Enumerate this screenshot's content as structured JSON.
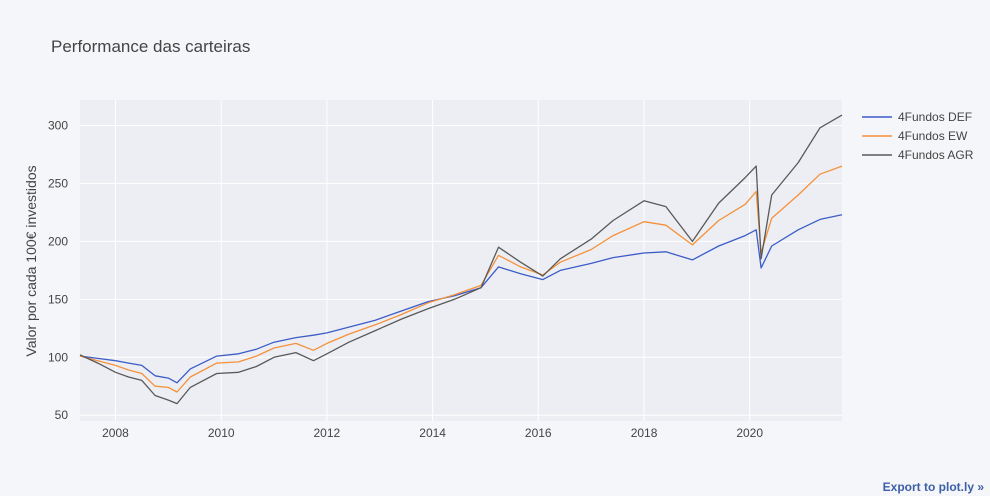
{
  "chart_data": {
    "type": "line",
    "title": "Performance das carteiras",
    "xlabel": "",
    "ylabel": "Valor por cada 100€ investidos",
    "x_ticks": [
      "2008",
      "2010",
      "2012",
      "2014",
      "2016",
      "2018",
      "2020"
    ],
    "y_ticks": [
      50,
      100,
      150,
      200,
      250,
      300
    ],
    "xlim": [
      "2007-05-01",
      "2021-09-30"
    ],
    "ylim": [
      45,
      322
    ],
    "grid": true,
    "legend_position": "top-right",
    "colors": {
      "4Fundos DEF": "#3c5cc8",
      "4Fundos EW": "#f5913a",
      "4Fundos AGR": "#595959"
    },
    "series": [
      {
        "name": "4Fundos DEF",
        "points": [
          [
            "2007-05-01",
            101
          ],
          [
            "2007-09-01",
            99
          ],
          [
            "2008-01-01",
            97
          ],
          [
            "2008-04-01",
            95
          ],
          [
            "2008-07-01",
            93
          ],
          [
            "2008-10-01",
            84
          ],
          [
            "2009-01-01",
            82
          ],
          [
            "2009-03-01",
            78
          ],
          [
            "2009-06-01",
            90
          ],
          [
            "2009-12-01",
            101
          ],
          [
            "2010-05-01",
            103
          ],
          [
            "2010-09-01",
            107
          ],
          [
            "2011-01-01",
            113
          ],
          [
            "2011-06-01",
            117
          ],
          [
            "2011-10-01",
            119
          ],
          [
            "2012-01-01",
            121
          ],
          [
            "2012-06-01",
            126
          ],
          [
            "2012-12-01",
            132
          ],
          [
            "2013-06-01",
            140
          ],
          [
            "2013-12-01",
            148
          ],
          [
            "2014-06-01",
            153
          ],
          [
            "2014-12-01",
            160
          ],
          [
            "2015-04-01",
            178
          ],
          [
            "2015-09-01",
            172
          ],
          [
            "2016-02-01",
            167
          ],
          [
            "2016-06-01",
            175
          ],
          [
            "2017-01-01",
            181
          ],
          [
            "2017-06-01",
            186
          ],
          [
            "2018-01-01",
            190
          ],
          [
            "2018-06-01",
            191
          ],
          [
            "2018-12-01",
            184
          ],
          [
            "2019-06-01",
            196
          ],
          [
            "2019-12-01",
            205
          ],
          [
            "2020-02-15",
            210
          ],
          [
            "2020-03-20",
            177
          ],
          [
            "2020-06-01",
            196
          ],
          [
            "2020-12-01",
            210
          ],
          [
            "2021-05-01",
            219
          ],
          [
            "2021-09-30",
            223
          ]
        ]
      },
      {
        "name": "4Fundos EW",
        "points": [
          [
            "2007-05-01",
            101
          ],
          [
            "2007-09-01",
            97
          ],
          [
            "2008-01-01",
            93
          ],
          [
            "2008-04-01",
            89
          ],
          [
            "2008-07-01",
            86
          ],
          [
            "2008-10-01",
            75
          ],
          [
            "2009-01-01",
            74
          ],
          [
            "2009-03-01",
            70
          ],
          [
            "2009-06-01",
            83
          ],
          [
            "2009-12-01",
            95
          ],
          [
            "2010-05-01",
            96
          ],
          [
            "2010-09-01",
            101
          ],
          [
            "2011-01-01",
            108
          ],
          [
            "2011-06-01",
            112
          ],
          [
            "2011-10-01",
            106
          ],
          [
            "2012-01-01",
            112
          ],
          [
            "2012-06-01",
            120
          ],
          [
            "2012-12-01",
            128
          ],
          [
            "2013-06-01",
            137
          ],
          [
            "2013-12-01",
            147
          ],
          [
            "2014-06-01",
            154
          ],
          [
            "2014-12-01",
            162
          ],
          [
            "2015-04-01",
            188
          ],
          [
            "2015-09-01",
            178
          ],
          [
            "2016-02-01",
            171
          ],
          [
            "2016-06-01",
            182
          ],
          [
            "2017-01-01",
            193
          ],
          [
            "2017-06-01",
            205
          ],
          [
            "2018-01-01",
            217
          ],
          [
            "2018-06-01",
            214
          ],
          [
            "2018-12-01",
            197
          ],
          [
            "2019-06-01",
            218
          ],
          [
            "2019-12-01",
            232
          ],
          [
            "2020-02-15",
            243
          ],
          [
            "2020-03-20",
            190
          ],
          [
            "2020-06-01",
            220
          ],
          [
            "2020-12-01",
            240
          ],
          [
            "2021-05-01",
            258
          ],
          [
            "2021-09-30",
            265
          ]
        ]
      },
      {
        "name": "4Fundos AGR",
        "points": [
          [
            "2007-05-01",
            102
          ],
          [
            "2007-09-01",
            95
          ],
          [
            "2008-01-01",
            87
          ],
          [
            "2008-04-01",
            83
          ],
          [
            "2008-07-01",
            80
          ],
          [
            "2008-10-01",
            67
          ],
          [
            "2009-01-01",
            63
          ],
          [
            "2009-03-01",
            60
          ],
          [
            "2009-06-01",
            74
          ],
          [
            "2009-12-01",
            86
          ],
          [
            "2010-05-01",
            87
          ],
          [
            "2010-09-01",
            92
          ],
          [
            "2011-01-01",
            100
          ],
          [
            "2011-06-01",
            104
          ],
          [
            "2011-10-01",
            97
          ],
          [
            "2012-01-01",
            103
          ],
          [
            "2012-06-01",
            113
          ],
          [
            "2012-12-01",
            123
          ],
          [
            "2013-06-01",
            133
          ],
          [
            "2013-12-01",
            142
          ],
          [
            "2014-06-01",
            150
          ],
          [
            "2014-12-01",
            160
          ],
          [
            "2015-04-01",
            195
          ],
          [
            "2015-09-01",
            182
          ],
          [
            "2016-02-01",
            170
          ],
          [
            "2016-06-01",
            185
          ],
          [
            "2017-01-01",
            202
          ],
          [
            "2017-06-01",
            218
          ],
          [
            "2018-01-01",
            235
          ],
          [
            "2018-06-01",
            230
          ],
          [
            "2018-12-01",
            200
          ],
          [
            "2019-06-01",
            233
          ],
          [
            "2019-12-01",
            255
          ],
          [
            "2020-02-15",
            265
          ],
          [
            "2020-03-20",
            185
          ],
          [
            "2020-06-01",
            240
          ],
          [
            "2020-12-01",
            268
          ],
          [
            "2021-05-01",
            298
          ],
          [
            "2021-09-30",
            309
          ]
        ]
      }
    ]
  },
  "export_link": "Export to plot.ly »"
}
